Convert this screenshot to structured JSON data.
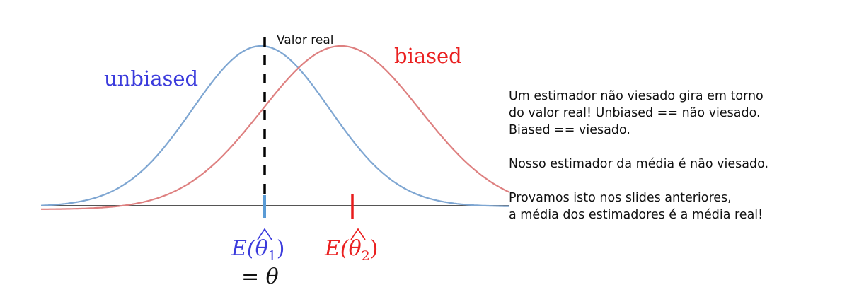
{
  "labels": {
    "real_value": "Valor real",
    "unbiased": "unbiased",
    "biased": "biased",
    "e_theta1_E": "E(",
    "e_theta1_theta": "θ",
    "e_theta1_sub": "1",
    "e_close": ")",
    "equals_theta": "= θ",
    "e_theta2_E": "E(",
    "e_theta2_theta": "θ",
    "e_theta2_sub": "2"
  },
  "colors": {
    "unbiased_curve": "#7ea6d2",
    "biased_curve": "#de8080",
    "unbiased_text": "#3b3bdc",
    "biased_text": "#ea2020",
    "axis": "#555555",
    "mean_unbiased_tick": "#5a9bd5",
    "mean_biased_tick": "#e81c1c",
    "real_value_line": "#000000"
  },
  "notes": {
    "p1_l1": "Um estimador não viesado gira em torno",
    "p1_l2": "do valor real! Unbiased == não viesado.",
    "p1_l3": "Biased == viesado.",
    "p2": "Nosso estimador da média é não viesado.",
    "p3_l1": "Provamos isto nos slides anteriores,",
    "p3_l2": "a média dos estimadores é a média real!"
  }
}
